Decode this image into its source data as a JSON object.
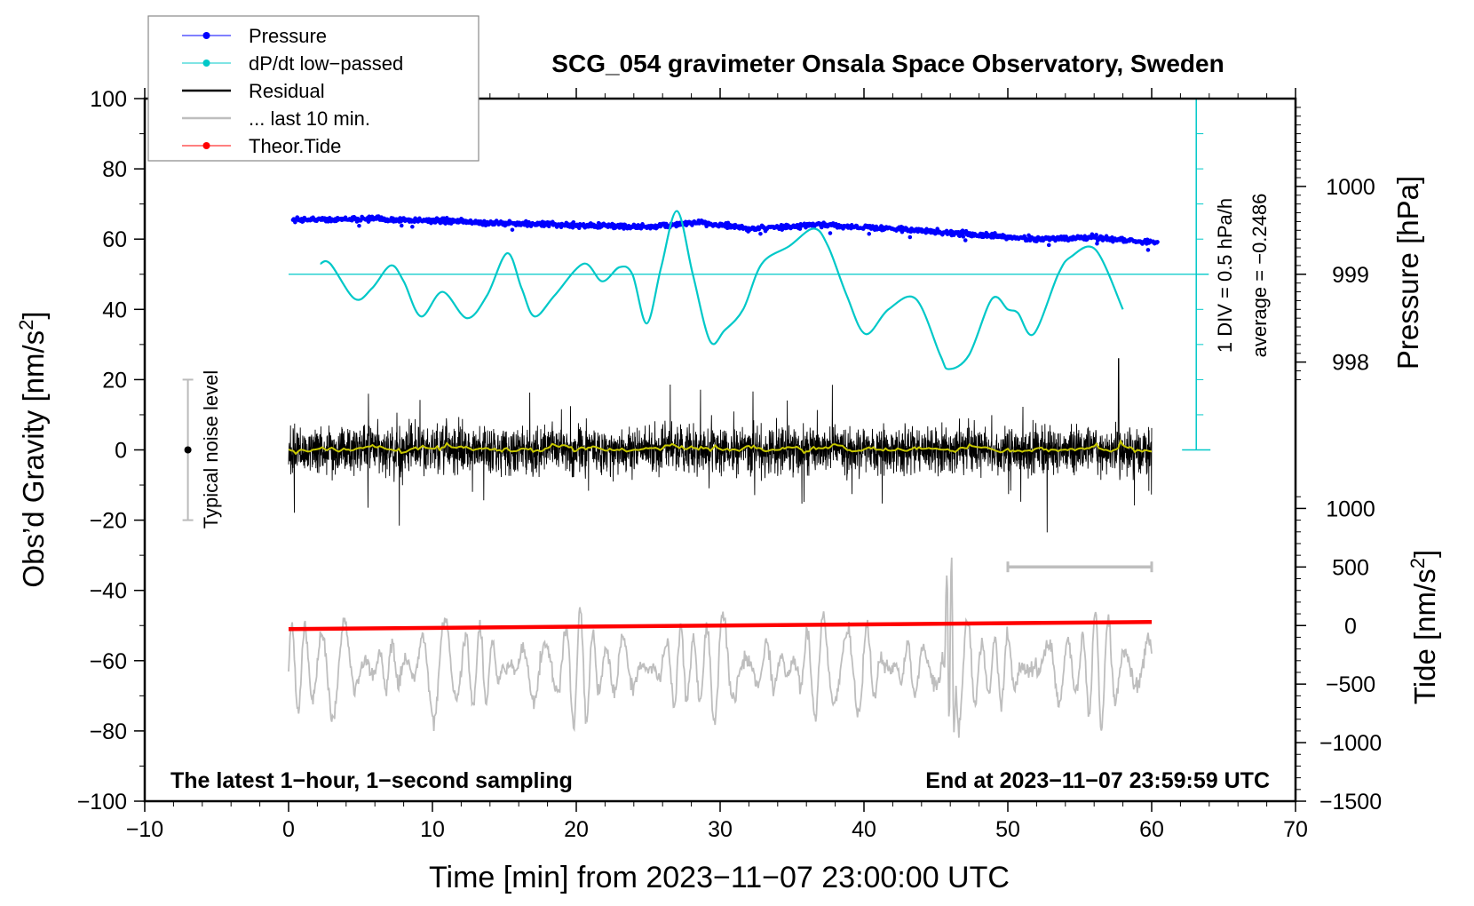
{
  "chart_data": {
    "type": "line",
    "title": "SCG_054 gravimeter Onsala Space Observatory, Sweden",
    "xlabel": "Time [min] from 2023−11−07 23:00:00 UTC",
    "ylabel": "Obs’d Gravity [nm/s",
    "ylabel_sup": "2",
    "ylabel_end": "]",
    "right_label_pressure": "Pressure [hPa]",
    "right_label_tide": "Tide [nm/s",
    "right_label_tide_sup": "2",
    "right_label_tide_end": "]",
    "xlim": [
      -10,
      70
    ],
    "ylim": [
      -100,
      100
    ],
    "x_ticks": [
      "−10",
      "0",
      "10",
      "20",
      "30",
      "40",
      "50",
      "60",
      "70"
    ],
    "x_tick_values": [
      -10,
      0,
      10,
      20,
      30,
      40,
      50,
      60,
      70
    ],
    "y_ticks": [
      "−100",
      "−80",
      "−60",
      "−40",
      "−20",
      "0",
      "20",
      "40",
      "60",
      "80",
      "100"
    ],
    "y_tick_values": [
      -100,
      -80,
      -60,
      -40,
      -20,
      0,
      20,
      40,
      60,
      80,
      100
    ],
    "pressure_ticks": [
      "998",
      "999",
      "1000"
    ],
    "pressure_tick_values": [
      998,
      999,
      1000
    ],
    "tide_ticks": [
      "−1500",
      "−1000",
      "−500",
      "0",
      "500",
      "1000"
    ],
    "tide_tick_values": [
      -1500,
      -1000,
      -500,
      0,
      500,
      1000
    ],
    "annotation_left": "The latest 1−hour, 1−second sampling",
    "annotation_right": "End at 2023−11−07 23:59:59 UTC",
    "noise_label": "Typical noise level",
    "noise_level": [
      -20,
      20
    ],
    "dpdt_div_label": "1 DIV = 0.5 hPa/h",
    "dpdt_average_label": "average = −0.2486",
    "dpdt_average": -0.2486,
    "dpdt_per_div": 0.5,
    "last10_bar_range": [
      50,
      60
    ],
    "legend_position": "top-left",
    "legend": [
      {
        "label": "Pressure",
        "color": "#0000ff"
      },
      {
        "label": "dP/dt low−passed",
        "color": "#00c8c8"
      },
      {
        "label": "Residual",
        "color": "#000000"
      },
      {
        "label": "... last 10 min.",
        "color": "#bebebe"
      },
      {
        "label": "Theor.Tide",
        "color": "#ff0000"
      }
    ],
    "series": [
      {
        "name": "Pressure",
        "unit": "hPa",
        "x": [
          0,
          5,
          10,
          15,
          20,
          25,
          28.5,
          32,
          37,
          42,
          47,
          52,
          56,
          60
        ],
        "y": [
          999.62,
          999.63,
          999.61,
          999.58,
          999.56,
          999.54,
          999.59,
          999.52,
          999.56,
          999.52,
          999.46,
          999.4,
          999.42,
          999.36
        ]
      },
      {
        "name": "dP/dt low-passed",
        "unit": "hPa/h",
        "x": [
          2.2,
          2.9,
          4.6,
          5.8,
          7.1,
          8,
          9.2,
          10.7,
          12.4,
          13.8,
          15.2,
          16.2,
          17.1,
          18.5,
          20.5,
          21.8,
          23,
          23.9,
          24.9,
          25.9,
          27,
          28.1,
          29.3,
          30.3,
          31.6,
          32.9,
          34.8,
          36.5,
          37.5,
          38.8,
          40.1,
          41.7,
          43.6,
          45.3,
          45.9,
          47.3,
          48.9,
          50,
          50.7,
          51.8,
          53.5,
          54.4,
          56.1,
          58
        ],
        "y": [
          -0.099,
          -0.099,
          -0.599,
          -0.449,
          -0.124,
          -0.349,
          -0.849,
          -0.499,
          -0.874,
          -0.549,
          0.051,
          -0.449,
          -0.849,
          -0.549,
          -0.099,
          -0.349,
          -0.149,
          -0.249,
          -0.949,
          -0.149,
          0.651,
          -0.249,
          -1.199,
          -1.049,
          -0.749,
          -0.099,
          0.151,
          0.401,
          0.151,
          -0.549,
          -1.099,
          -0.749,
          -0.599,
          -1.399,
          -1.599,
          -1.399,
          -0.599,
          -0.749,
          -0.799,
          -1.099,
          -0.249,
          0.001,
          0.101,
          -0.749
        ]
      },
      {
        "name": "Residual",
        "unit": "nm/s2",
        "x_range": [
          0,
          60
        ],
        "approx_range": [
          -25,
          27
        ],
        "mean": 0
      },
      {
        "name": "... last 10 min.",
        "unit": "nm/s2",
        "x_range": [
          50,
          60
        ],
        "approx_range": [
          -1400,
          650
        ]
      },
      {
        "name": "Theor.Tide",
        "unit": "nm/s2",
        "x": [
          0,
          60
        ],
        "y": [
          -30,
          30
        ]
      }
    ]
  }
}
